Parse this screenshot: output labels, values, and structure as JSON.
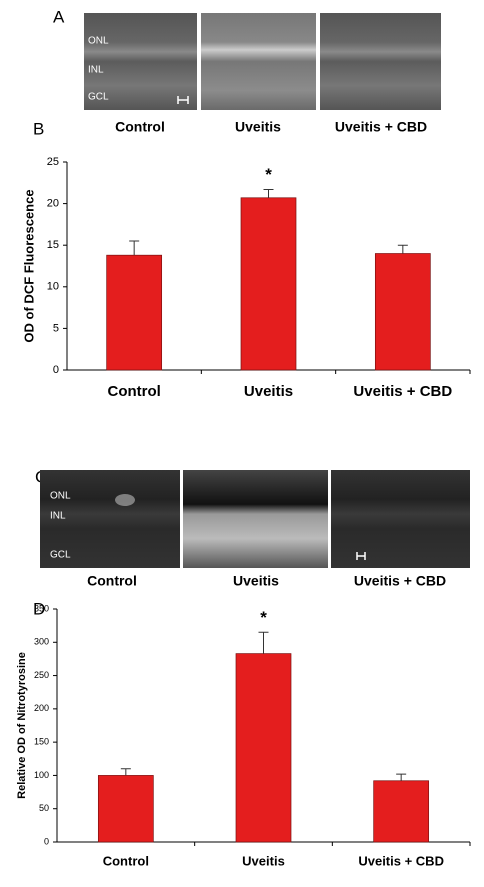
{
  "panel_a": {
    "letter": "A",
    "layers": [
      "ONL",
      "INL",
      "GCL"
    ],
    "captions": [
      "Control",
      "Uveitis",
      "Uveitis + CBD"
    ]
  },
  "panel_c": {
    "letter": "C",
    "layers": [
      "ONL",
      "INL",
      "GCL"
    ],
    "captions": [
      "Control",
      "Uveitis",
      "Uveitis + CBD"
    ]
  },
  "chart_data": [
    {
      "type": "bar",
      "label": "B",
      "y_label": "OD of DCF Fluorescence",
      "categories": [
        "Control",
        "Uveitis",
        "Uveitis + CBD"
      ],
      "values": [
        13.8,
        20.7,
        14.0
      ],
      "errors": [
        1.7,
        1.0,
        1.0
      ],
      "color": "#e41e1e",
      "ylim": [
        0,
        25
      ],
      "yticks": [
        0,
        5,
        10,
        15,
        20,
        25
      ],
      "annotations": [
        {
          "text": "*",
          "x": "Uveitis"
        }
      ]
    },
    {
      "type": "bar",
      "label": "D",
      "y_label": "Relative OD of Nitrotyrosine",
      "categories": [
        "Control",
        "Uveitis",
        "Uveitis + CBD"
      ],
      "values": [
        100,
        283,
        92
      ],
      "errors": [
        10,
        32,
        10
      ],
      "color": "#e41e1e",
      "ylim": [
        0,
        350
      ],
      "yticks": [
        0,
        50,
        100,
        150,
        200,
        250,
        300,
        350
      ],
      "annotations": [
        {
          "text": "*",
          "x": "Uveitis"
        }
      ]
    }
  ]
}
